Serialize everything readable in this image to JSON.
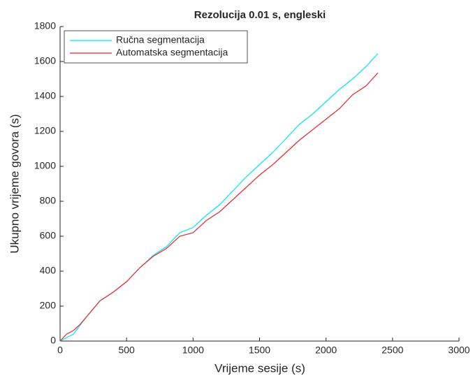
{
  "chart_data": {
    "type": "line",
    "title": "Rezolucija 0.01 s, engleski",
    "x_label": "Vrijeme sesije (s)",
    "y_label": "Ukupno vrijeme govora (s)",
    "x": [
      0,
      50,
      100,
      150,
      200,
      300,
      400,
      500,
      600,
      700,
      800,
      900,
      1000,
      1100,
      1200,
      1300,
      1400,
      1500,
      1600,
      1700,
      1800,
      1900,
      2000,
      2100,
      2200,
      2300,
      2390
    ],
    "series": [
      {
        "name": "Ručna segmentacija",
        "color": "#00e5ee",
        "values": [
          0,
          20,
          40,
          90,
          140,
          230,
          280,
          340,
          420,
          490,
          540,
          620,
          650,
          720,
          780,
          860,
          940,
          1010,
          1080,
          1160,
          1240,
          1300,
          1370,
          1440,
          1500,
          1570,
          1645
        ]
      },
      {
        "name": "Automatska segmentacija",
        "color": "#e8282e",
        "values": [
          0,
          40,
          60,
          95,
          140,
          230,
          280,
          340,
          420,
          485,
          530,
          600,
          620,
          690,
          740,
          810,
          880,
          950,
          1010,
          1080,
          1150,
          1210,
          1270,
          1330,
          1410,
          1460,
          1535
        ]
      }
    ],
    "xlim": [
      0,
      3000
    ],
    "xticks": [
      0,
      500,
      1000,
      1500,
      2000,
      2500,
      3000
    ],
    "ylim": [
      0,
      1800
    ],
    "yticks": [
      0,
      200,
      400,
      600,
      800,
      1000,
      1200,
      1400,
      1600,
      1800
    ],
    "grid": false,
    "legend": "top-left"
  }
}
